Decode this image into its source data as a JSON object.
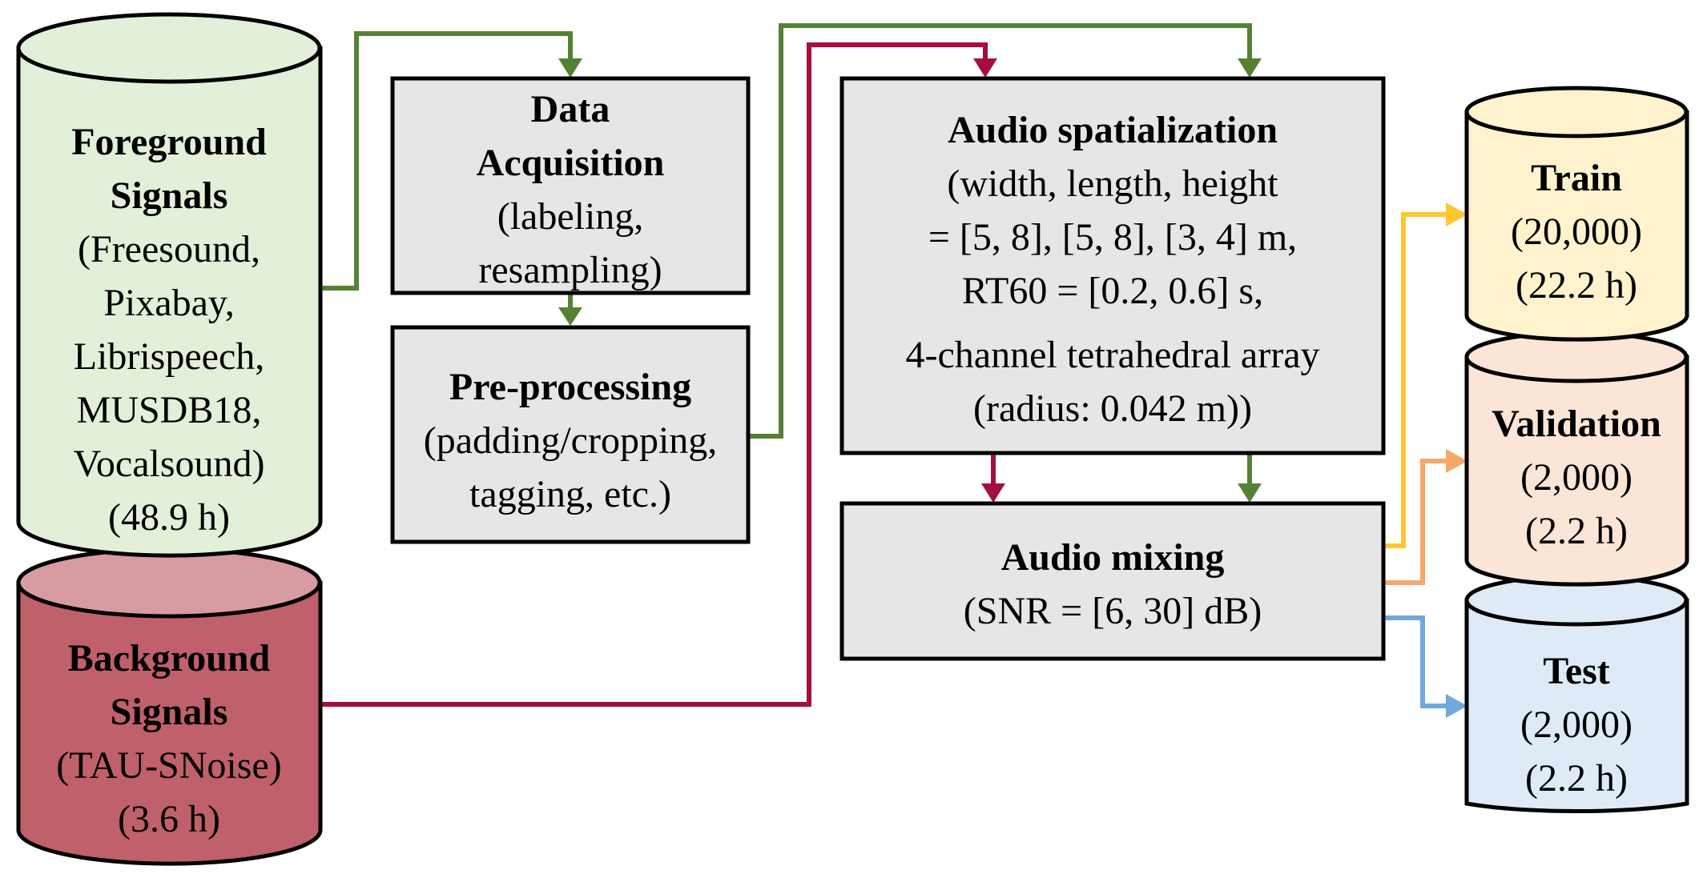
{
  "foreground": {
    "title_line1": "Foreground",
    "title_line2": "Signals",
    "sources": [
      "(Freesound,",
      "Pixabay,",
      "Librispeech,",
      "MUSDB18,",
      "Vocalsound)"
    ],
    "duration": "(48.9 h)"
  },
  "background": {
    "title_line1": "Background",
    "title_line2": "Signals",
    "source": "(TAU-SNoise)",
    "duration": "(3.6 h)"
  },
  "acquisition": {
    "title_line1": "Data",
    "title_line2": "Acquisition",
    "detail_line1": "(labeling,",
    "detail_line2": "resampling)"
  },
  "preprocessing": {
    "title": "Pre-processing",
    "detail_line1": "(padding/cropping,",
    "detail_line2": "tagging, etc.)"
  },
  "spatialization": {
    "title": "Audio spatialization",
    "lines": [
      "(width, length, height",
      "= [5, 8], [5, 8], [3, 4] m,",
      "RT60 = [0.2, 0.6] s,",
      "4-channel tetrahedral array",
      "(radius: 0.042 m))"
    ]
  },
  "mixing": {
    "title": "Audio mixing",
    "detail": "(SNR = [6, 30] dB)"
  },
  "train": {
    "title": "Train",
    "count": "(20,000)",
    "duration": "(22.2 h)"
  },
  "validation": {
    "title": "Validation",
    "count": "(2,000)",
    "duration": "(2.2 h)"
  },
  "test": {
    "title": "Test",
    "count": "(2,000)",
    "duration": "(2.2 h)"
  },
  "colors": {
    "green_arrow": "#548235",
    "red_arrow": "#A50F3F",
    "yellow_arrow": "#FFC830",
    "orange_arrow": "#F4A86A",
    "blue_arrow": "#6FA8DC",
    "foreground_fill": "#E2F0D9",
    "background_fill": "#C0606A",
    "background_top": "#D79BA1",
    "process_fill": "#E6E6E6",
    "train_fill": "#FFF2CC",
    "validation_fill": "#FBE5D6",
    "test_fill": "#DEEBF7"
  }
}
